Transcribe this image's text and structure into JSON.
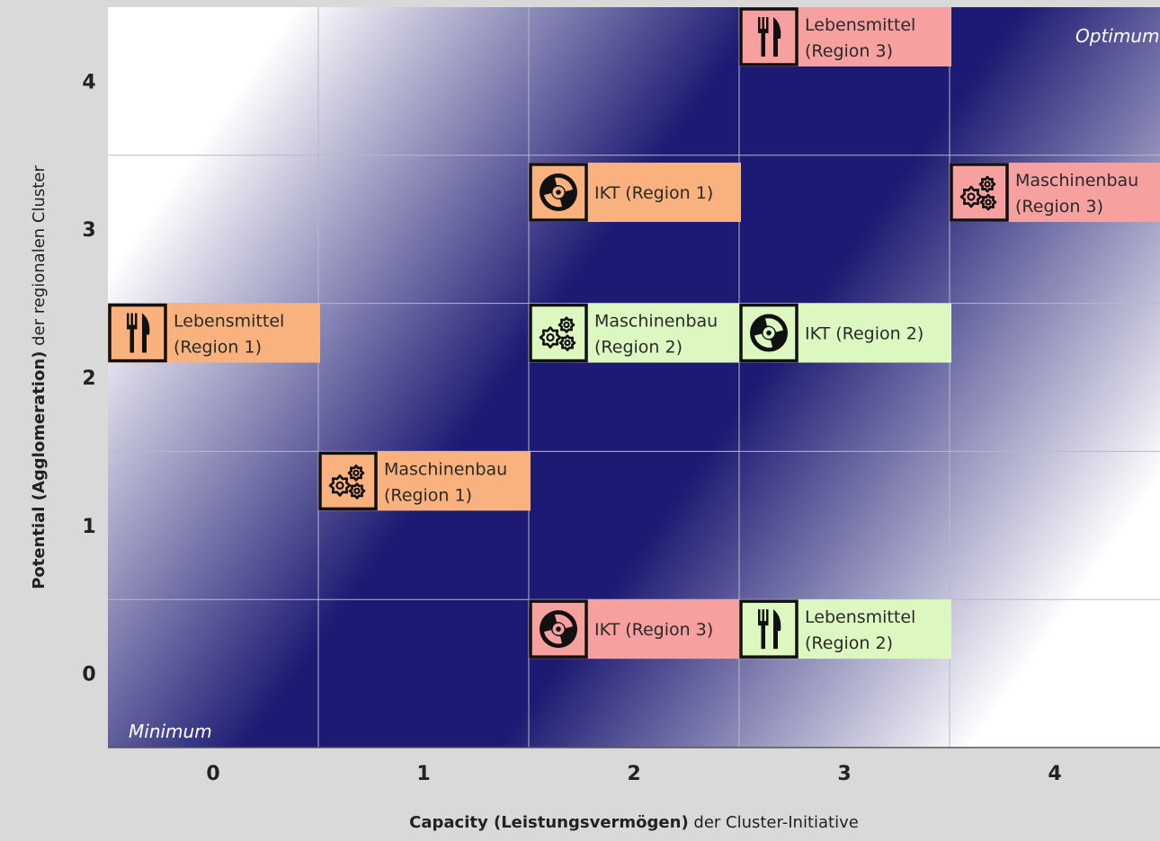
{
  "chart_data": {
    "type": "matrix",
    "xlabel_bold": "Capacity (Leistungsvermögen)",
    "xlabel_rest": " der Cluster-Initiative",
    "ylabel_bold": "Potential (Agglomeration)",
    "ylabel_rest": " der regionalen Cluster",
    "x_ticks": [
      "0",
      "1",
      "2",
      "3",
      "4"
    ],
    "y_ticks": [
      "0",
      "1",
      "2",
      "3",
      "4"
    ],
    "xlim": [
      -0.5,
      4.5
    ],
    "ylim": [
      -0.5,
      4.5
    ],
    "grid": true,
    "corner_min": "Minimum",
    "corner_max": "Optimum",
    "colors": {
      "dark": "#1c1a72",
      "light": "#ffffff",
      "orange": "#f9b27e",
      "pink": "#f7a0a0",
      "green": "#dcf8c0"
    },
    "items": [
      {
        "line1": "Lebensmittel",
        "line2": "(Region 3)",
        "x": 3,
        "y": 4.3,
        "icon": "fork-knife-icon",
        "color": "pink"
      },
      {
        "line1": "IKT (Region 1)",
        "line2": "",
        "x": 2,
        "y": 3.25,
        "icon": "disc-icon",
        "color": "orange"
      },
      {
        "line1": "Maschinenbau",
        "line2": "(Region 3)",
        "x": 4,
        "y": 3.25,
        "icon": "gears-icon",
        "color": "pink"
      },
      {
        "line1": "Lebensmittel",
        "line2": "(Region 1)",
        "x": 0,
        "y": 2.3,
        "icon": "fork-knife-icon",
        "color": "orange"
      },
      {
        "line1": "Maschinenbau",
        "line2": "(Region 2)",
        "x": 2,
        "y": 2.3,
        "icon": "gears-icon",
        "color": "green"
      },
      {
        "line1": "IKT (Region 2)",
        "line2": "",
        "x": 3,
        "y": 2.3,
        "icon": "disc-icon",
        "color": "green"
      },
      {
        "line1": "Maschinenbau",
        "line2": "(Region 1)",
        "x": 1,
        "y": 1.3,
        "icon": "gears-icon",
        "color": "orange"
      },
      {
        "line1": "IKT (Region 3)",
        "line2": "",
        "x": 2,
        "y": 0.3,
        "icon": "disc-icon",
        "color": "pink"
      },
      {
        "line1": "Lebensmittel",
        "line2": "(Region 2)",
        "x": 3,
        "y": 0.3,
        "icon": "fork-knife-icon",
        "color": "green"
      }
    ]
  }
}
